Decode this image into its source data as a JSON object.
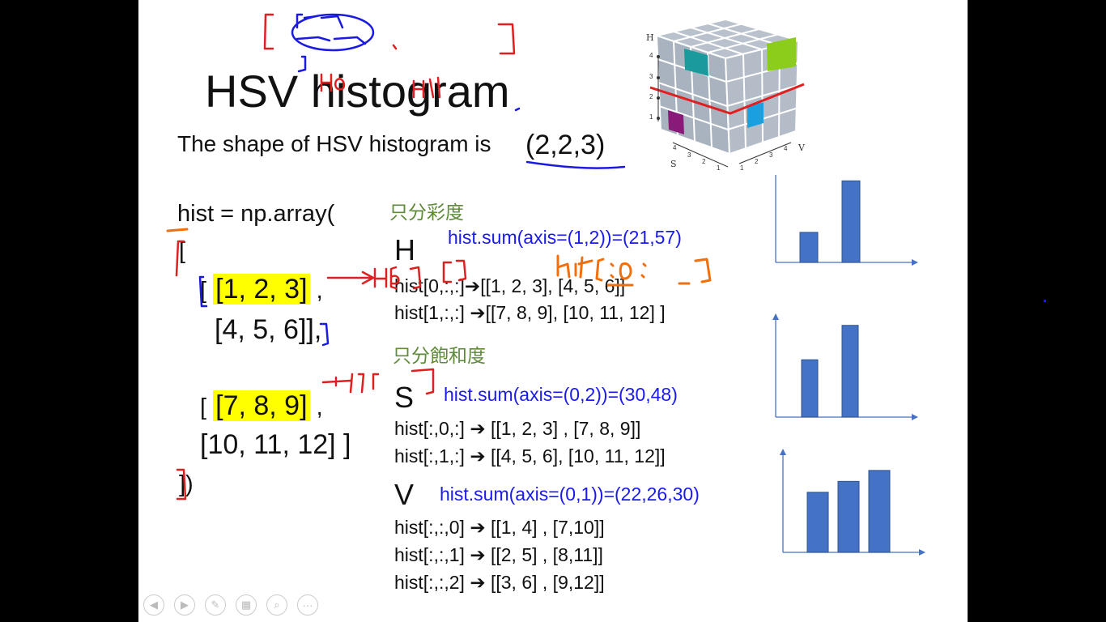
{
  "slide": {
    "title": "HSV histogram",
    "shape_text": "The shape of HSV histogram is",
    "shape_value": "(2,2,3)",
    "code": {
      "line1": "hist = np.array(",
      "open": "[",
      "row1_open": "[",
      "row1a": "[1, 2, 3]",
      "row1_sep": ",",
      "row1b": "[4, 5, 6]],",
      "row2_open": "[",
      "row2a": "[7, 8, 9]",
      "row2_sep": ",",
      "row2b": "[10, 11, 12] ]",
      "close": "])"
    },
    "sections": {
      "h_zh": "只分彩度",
      "h_letter": "H",
      "h_sum": "hist.sum(axis=(1,2))=(21,57)",
      "h_line1": "hist[0,:,:]➔[[1, 2, 3], [4, 5, 6]]",
      "h_line2": "hist[1,:,:] ➔[[7, 8, 9],  [10, 11, 12] ]",
      "s_zh": "只分飽和度",
      "s_letter": "S",
      "s_sum": "hist.sum(axis=(0,2))=(30,48)",
      "s_line1": "hist[:,0,:]  ➔  [[1, 2, 3] , [7, 8, 9]]",
      "s_line2": "hist[:,1,:] ➔ [[4, 5, 6], [10, 11, 12]]",
      "v_letter": "V",
      "v_sum": "hist.sum(axis=(0,1))=(22,26,30)",
      "v_line1": "hist[:,:,0] ➔  [[1, 4] , [7,10]]",
      "v_line2": "hist[:,:,1] ➔ [[2, 5] , [8,11]]",
      "v_line3": "hist[:,:,2] ➔ [[3, 6] , [9,12]]"
    },
    "cube_labels": {
      "h_axis": "H",
      "s_axis": "S",
      "v_axis": "V",
      "h_ticks": [
        "4",
        "3",
        "2",
        "1"
      ],
      "s_ticks": [
        "4",
        "3",
        "2",
        "1"
      ],
      "v_ticks": [
        "1",
        "2",
        "3",
        "4"
      ]
    }
  },
  "chart_data": [
    {
      "type": "bar",
      "values": [
        21,
        57
      ]
    },
    {
      "type": "bar",
      "values": [
        30,
        48
      ]
    },
    {
      "type": "bar",
      "values": [
        22,
        26,
        30
      ]
    }
  ],
  "colors": {
    "bar": "#4472c4",
    "axis": "#4472c4",
    "annotation_red": "#e02020",
    "annotation_blue": "#1a1ae0",
    "annotation_orange": "#f07010",
    "highlight": "#ffff00",
    "zh_green": "#5e8a3a"
  },
  "toolbar": {
    "icons": [
      "prev-icon",
      "next-icon",
      "pen-icon",
      "slides-icon",
      "zoom-icon",
      "more-icon"
    ]
  }
}
